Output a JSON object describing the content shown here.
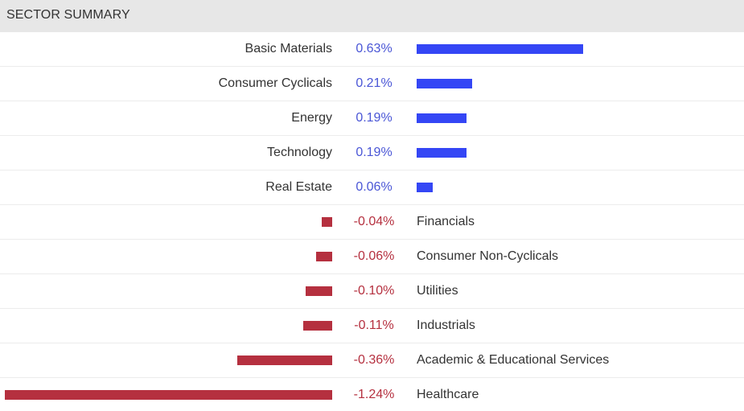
{
  "header": {
    "title": "SECTOR SUMMARY"
  },
  "colors": {
    "positive": "#3446f5",
    "negative": "#b5303f",
    "positive_text": "#4a56d6",
    "negative_text": "#b5303f"
  },
  "chart_data": {
    "type": "bar",
    "orientation": "horizontal-diverging",
    "title": "SECTOR SUMMARY",
    "unit": "%",
    "categories": [
      "Basic Materials",
      "Consumer Cyclicals",
      "Energy",
      "Technology",
      "Real Estate",
      "Financials",
      "Consumer Non-Cyclicals",
      "Utilities",
      "Industrials",
      "Academic & Educational Services",
      "Healthcare"
    ],
    "values": [
      0.63,
      0.21,
      0.19,
      0.19,
      0.06,
      -0.04,
      -0.06,
      -0.1,
      -0.11,
      -0.36,
      -1.24
    ],
    "value_labels": [
      "0.63%",
      "0.21%",
      "0.19%",
      "0.19%",
      "0.06%",
      "-0.04%",
      "-0.06%",
      "-0.10%",
      "-0.11%",
      "-0.36%",
      "-1.24%"
    ]
  }
}
